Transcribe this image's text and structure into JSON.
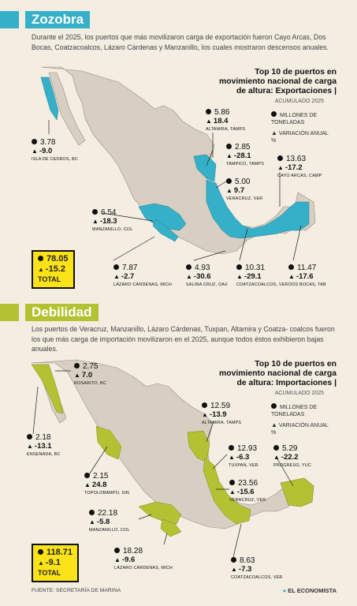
{
  "section1": {
    "title": "Zozobra",
    "intro": "Durante el 2025, los puertos que más movilizaron carga de exportación fueron Cayo Arcas, Dos Bocas, Coatzacoalcos, Lázaro Cárdenas y Manzanillo, los cuales mostraron descensos anuales.",
    "chart_title_1": "Top 10 de puertos en",
    "chart_title_2": "movimiento nacional de carga",
    "chart_title_3": "de altura: Exportaciones |",
    "subtitle": "ACUMULADO 2025",
    "legend_units": "MILLONES DE TONELADAS",
    "legend_var": "VARIACIÓN ANUAL %",
    "ports": [
      {
        "value": "3.78",
        "change": "-9.0",
        "name": "ISLA DE CEDROS, BC"
      },
      {
        "value": "5.86",
        "change": "18.4",
        "name": "ALTAMIRA, TAMPS"
      },
      {
        "value": "2.85",
        "change": "-28.1",
        "name": "TAMPICO, TAMPS"
      },
      {
        "value": "5.00",
        "change": "9.7",
        "name": "VERACRUZ, VER"
      },
      {
        "value": "13.63",
        "change": "-17.2",
        "name": "CAYO ARCAS, CAMP"
      },
      {
        "value": "6.54",
        "change": "-18.3",
        "name": "MANZANILLO, COL"
      },
      {
        "value": "7.87",
        "change": "-2.7",
        "name": "LÁZARO CÁRDENAS, MICH"
      },
      {
        "value": "4.93",
        "change": "-30.6",
        "name": "SALINA CRUZ, OAX"
      },
      {
        "value": "10.31",
        "change": "-29.1",
        "name": "COATZACOALCOS, VER"
      },
      {
        "value": "11.47",
        "change": "-17.6",
        "name": "DOS BOCAS, TAB"
      }
    ],
    "total": {
      "value": "78.05",
      "change": "-15.2",
      "label": "TOTAL"
    },
    "color": "#35b0c8"
  },
  "section2": {
    "title": "Debilidad",
    "intro": "Los puertos de Veracruz, Manzanillo, Lázaro Cárdenas, Tuxpan, Altamira y Coatza- coalcos fueron los que más carga de importación movilizaron en el 2025, aunque todos éstos exhibieron bajas anuales.",
    "chart_title_1": "Top 10 de puertos en",
    "chart_title_2": "movimiento nacional de carga",
    "chart_title_3": "de altura: Importaciones |",
    "subtitle": "ACUMULADO 2025",
    "legend_units": "MILLONES DE TONELADAS",
    "legend_var": "VARIACIÓN ANUAL %",
    "ports": [
      {
        "value": "2.75",
        "change": "7.0",
        "name": "ROSARITO, BC"
      },
      {
        "value": "12.59",
        "change": "-13.9",
        "name": "ALTAMIRA, TAMPS"
      },
      {
        "value": "2.18",
        "change": "-13.1",
        "name": "ENSENADA, BC"
      },
      {
        "value": "12.93",
        "change": "-6.3",
        "name": "TUXPAN, VER"
      },
      {
        "value": "5.29",
        "change": "-22.2",
        "name": "PROGRESO, YUC"
      },
      {
        "value": "2.15",
        "change": "24.8",
        "name": "TOPOLOBAMPO, SIN"
      },
      {
        "value": "23.56",
        "change": "-15.6",
        "name": "VERACRUZ, VER"
      },
      {
        "value": "22.18",
        "change": "-5.8",
        "name": "MANZANILLO, COL"
      },
      {
        "value": "18.28",
        "change": "-9.6",
        "name": "LÁZARO CÁRDENAS, MICH"
      },
      {
        "value": "8.63",
        "change": "-7.3",
        "name": "COATZACOALCOS, VER"
      }
    ],
    "total": {
      "value": "118.71",
      "change": "-9.1",
      "label": "TOTAL"
    },
    "color": "#b3c233"
  },
  "footer": {
    "source": "FUENTE: SECRETARÍA DE MARINA",
    "brand": "EL ECONOMISTA"
  }
}
